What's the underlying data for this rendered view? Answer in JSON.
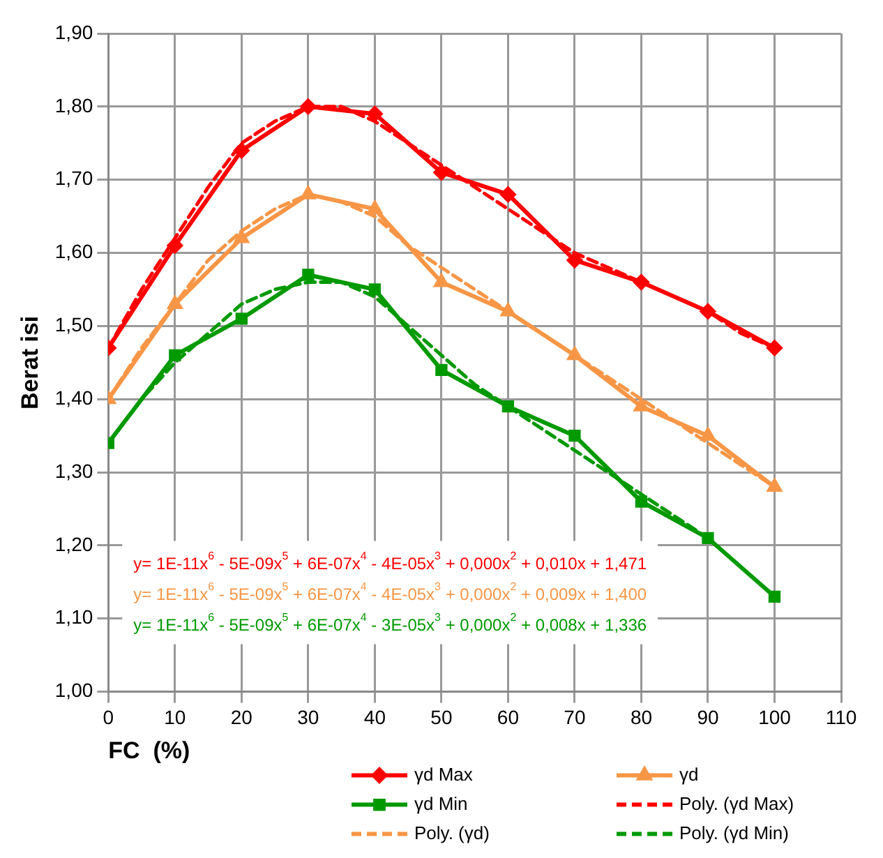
{
  "chart_data": {
    "type": "line",
    "xlabel": "FC  (%)",
    "ylabel": "Berat isi",
    "xlim": [
      0,
      110
    ],
    "xticks": [
      0,
      10,
      20,
      30,
      40,
      50,
      60,
      70,
      80,
      90,
      100,
      110
    ],
    "ylim": [
      1.0,
      1.9
    ],
    "yticks": [
      {
        "value": 1.0,
        "label": "1,00"
      },
      {
        "value": 1.1,
        "label": "1,10"
      },
      {
        "value": 1.2,
        "label": "1,20"
      },
      {
        "value": 1.3,
        "label": "1,30"
      },
      {
        "value": 1.4,
        "label": "1,40"
      },
      {
        "value": 1.5,
        "label": "1,50"
      },
      {
        "value": 1.6,
        "label": "1,60"
      },
      {
        "value": 1.7,
        "label": "1,70"
      },
      {
        "value": 1.8,
        "label": "1,80"
      },
      {
        "value": 1.9,
        "label": "1,90"
      }
    ],
    "grid": true,
    "legend": "bottom",
    "x": [
      0,
      10,
      20,
      30,
      40,
      50,
      60,
      70,
      80,
      90,
      100
    ],
    "series": [
      {
        "name": "γd Max",
        "color": "#ff0000",
        "marker": "diamond",
        "values": [
          1.47,
          1.61,
          1.74,
          1.8,
          1.79,
          1.71,
          1.68,
          1.59,
          1.56,
          1.52,
          1.47
        ]
      },
      {
        "name": "γd",
        "color": "#f79646",
        "marker": "triangle",
        "values": [
          1.4,
          1.53,
          1.62,
          1.68,
          1.66,
          1.56,
          1.52,
          1.46,
          1.39,
          1.35,
          1.28
        ]
      },
      {
        "name": "γd Min",
        "color": "#009900",
        "marker": "square",
        "values": [
          1.34,
          1.46,
          1.51,
          1.57,
          1.55,
          1.44,
          1.39,
          1.35,
          1.26,
          1.21,
          1.13
        ]
      },
      {
        "name": "Poly. (γd Max)",
        "color": "#ff0000",
        "marker": "none",
        "line_style": "dashed",
        "x": [
          0,
          5,
          10,
          15,
          20,
          25,
          30,
          35,
          40,
          45,
          50,
          55,
          60,
          65,
          70,
          75,
          80,
          85,
          90,
          95,
          100
        ],
        "values": [
          1.47,
          1.55,
          1.62,
          1.69,
          1.75,
          1.78,
          1.8,
          1.8,
          1.78,
          1.75,
          1.72,
          1.69,
          1.66,
          1.63,
          1.6,
          1.58,
          1.56,
          1.54,
          1.52,
          1.49,
          1.47
        ]
      },
      {
        "name": "Poly. (γd)",
        "color": "#f79646",
        "marker": "none",
        "line_style": "dashed",
        "x": [
          0,
          5,
          10,
          15,
          20,
          25,
          30,
          35,
          40,
          45,
          50,
          55,
          60,
          65,
          70,
          75,
          80,
          85,
          90,
          95,
          100
        ],
        "values": [
          1.4,
          1.47,
          1.53,
          1.59,
          1.63,
          1.66,
          1.68,
          1.67,
          1.65,
          1.61,
          1.58,
          1.55,
          1.52,
          1.49,
          1.46,
          1.43,
          1.4,
          1.37,
          1.34,
          1.31,
          1.28
        ]
      },
      {
        "name": "Poly. (γd Min)",
        "color": "#009900",
        "marker": "none",
        "line_style": "dashed",
        "x": [
          0,
          5,
          10,
          15,
          20,
          25,
          30,
          35,
          40,
          45,
          50,
          55,
          60,
          65,
          70,
          75,
          80,
          85,
          90,
          95,
          100
        ],
        "values": [
          1.34,
          1.4,
          1.45,
          1.49,
          1.53,
          1.55,
          1.56,
          1.56,
          1.54,
          1.5,
          1.46,
          1.42,
          1.39,
          1.36,
          1.33,
          1.3,
          1.27,
          1.24,
          1.21,
          1.17,
          1.13
        ]
      }
    ],
    "annotations": [
      "y= 1E-11x$^{6}$ - 5E-09x$^{5}$ + 6E-07x$^{4}$ - 4E-05x$^{3}$ + 0,000x$^{2}$ + 0,010x + 1,471",
      "y= 1E-11x$^{6}$ - 5E-09x$^{5}$ + 6E-07x$^{4}$ - 4E-05x$^{3}$ + 0,000x$^{2}$ + 0,009x + 1,400",
      "y= 1E-11x$^{6}$ - 5E-09x$^{5}$ + 6E-07x$^{4}$ - 3E-05x$^{3}$ + 0,000x$^{2}$ + 0,008x + 1,336"
    ]
  }
}
